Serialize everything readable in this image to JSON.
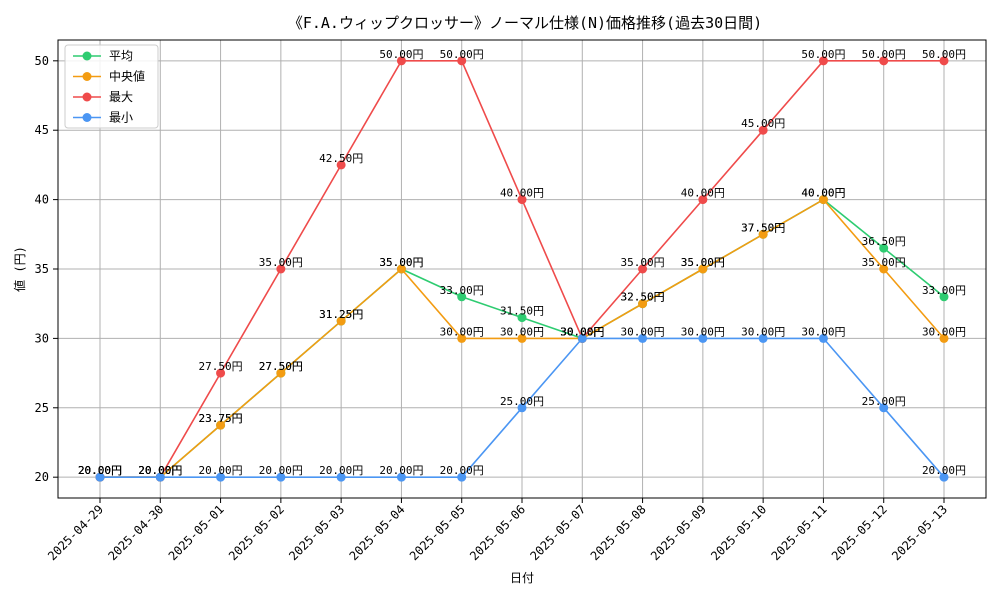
{
  "chart_data": {
    "type": "line",
    "title": "《F.A.ウィップクロッサー》ノーマル仕様(N)価格推移(過去30日間)",
    "xlabel": "日付",
    "ylabel": "値 (円)",
    "categories": [
      "2025-04-29",
      "2025-04-30",
      "2025-05-01",
      "2025-05-02",
      "2025-05-03",
      "2025-05-04",
      "2025-05-05",
      "2025-05-06",
      "2025-05-07",
      "2025-05-08",
      "2025-05-09",
      "2025-05-10",
      "2025-05-11",
      "2025-05-12",
      "2025-05-13"
    ],
    "ylim": [
      18.5,
      51.5
    ],
    "yticks": [
      20,
      25,
      30,
      35,
      40,
      45,
      50
    ],
    "grid": true,
    "legend": "top-left",
    "value_suffix": "円",
    "series": [
      {
        "name": "平均",
        "color": "#2ecc71",
        "values": [
          20,
          20,
          23.75,
          27.5,
          31.25,
          35,
          33,
          31.5,
          30,
          32.5,
          35,
          37.5,
          40,
          36.5,
          33
        ]
      },
      {
        "name": "中央値",
        "color": "#f39c12",
        "values": [
          20,
          20,
          23.75,
          27.5,
          31.25,
          35,
          30,
          30,
          30,
          32.5,
          35,
          37.5,
          40,
          35,
          30
        ]
      },
      {
        "name": "最大",
        "color": "#ef4b4b",
        "values": [
          20,
          20,
          27.5,
          35,
          42.5,
          50,
          50,
          40,
          30,
          35,
          40,
          45,
          50,
          50,
          50
        ]
      },
      {
        "name": "最小",
        "color": "#4b96f3",
        "values": [
          20,
          20,
          20,
          20,
          20,
          20,
          20,
          25,
          30,
          30,
          30,
          30,
          30,
          25,
          20
        ]
      }
    ]
  }
}
